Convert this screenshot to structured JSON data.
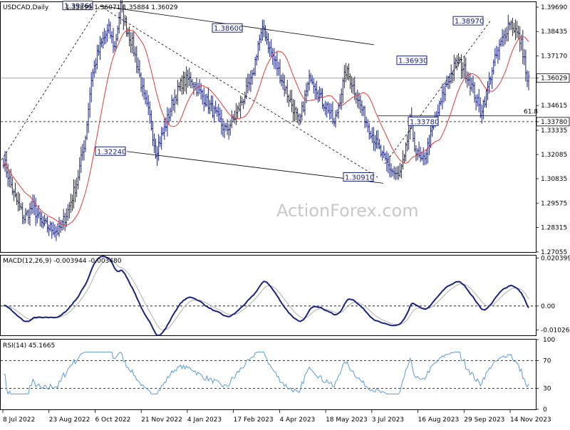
{
  "chart_data": [
    {
      "type": "candlestick",
      "title": "USDCAD,Daily",
      "ohlc_readout": "1.35899 1.36071 1.35884 1.36029",
      "y_ticks": [
        "1.39690",
        "1.38435",
        "1.37170",
        "1.36029",
        "1.34615",
        "1.33780",
        "1.33335",
        "1.32085",
        "1.30835",
        "1.29575",
        "1.28315",
        "1.27055"
      ],
      "ylim": [
        1.2705,
        1.3995
      ],
      "current_price_label": "1.36029",
      "support_label": "1.33780",
      "fib_label": "61.8",
      "price_tags": [
        {
          "label": "1.39760",
          "value": 1.3976
        },
        {
          "label": "1.38600",
          "value": 1.386
        },
        {
          "label": "1.32240",
          "value": 1.3224
        },
        {
          "label": "1.30910",
          "value": 1.3091
        },
        {
          "label": "1.36930",
          "value": 1.3693
        },
        {
          "label": "1.38970",
          "value": 1.3897
        },
        {
          "label": "1.33780",
          "value": 1.3378
        }
      ],
      "watermark": "ActionForex.com"
    },
    {
      "type": "line",
      "title": "MACD(12,26,9) -0.003944 -0.003480",
      "y_ticks": [
        "0.020399",
        "0.00",
        "-0.01026"
      ],
      "ylim": [
        -0.0125,
        0.0215
      ]
    },
    {
      "type": "line",
      "title": "RSI(14) 45.1665",
      "y_ticks": [
        "100",
        "70",
        "30",
        "0"
      ],
      "ylim": [
        0,
        100
      ],
      "levels": [
        70,
        30
      ]
    }
  ],
  "x_ticks": [
    "8 Jul 2022",
    "23 Aug 2022",
    "6 Oct 2022",
    "21 Nov 2022",
    "4 Jan 2023",
    "17 Feb 2023",
    "4 Apr 2023",
    "18 May 2023",
    "3 Jul 2023",
    "16 Aug 2023",
    "29 Sep 2023",
    "14 Nov 2023"
  ],
  "colors": {
    "candle": "#1a237e",
    "ma": "#e53935",
    "macd": "#1a237e",
    "signal": "#b0b0b0",
    "rsi": "#5b9bd5"
  }
}
